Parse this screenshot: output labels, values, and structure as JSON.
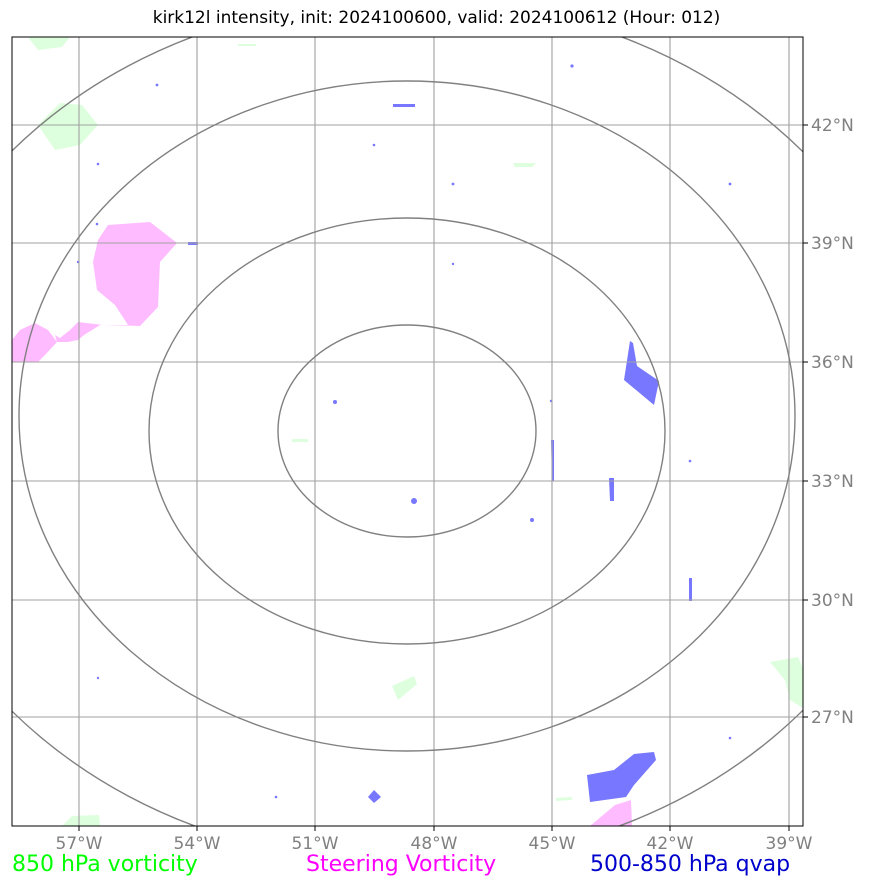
{
  "title": "kirk12l intensity, init: 2024100600, valid: 2024100612 (Hour: 012)",
  "axes": {
    "lon_labels": [
      "57°W",
      "54°W",
      "51°W",
      "48°W",
      "45°W",
      "42°W",
      "39°W"
    ],
    "lat_labels": [
      "42°N",
      "39°N",
      "36°N",
      "33°N",
      "30°N",
      "27°N"
    ]
  },
  "legend": [
    {
      "label": "850 hPa vorticity",
      "color": "#00ff00"
    },
    {
      "label": "Steering Vorticity",
      "color": "#ff00ff"
    },
    {
      "label": "500-850 hPa qvap",
      "color": "#0000cc"
    }
  ],
  "colors": {
    "vorticity_fill": "#ddffdd",
    "steering_fill": "#ffbbff",
    "qvap_fill": "#7777ff",
    "grid": "#a0a0a0",
    "range_rings": "#808080"
  }
}
